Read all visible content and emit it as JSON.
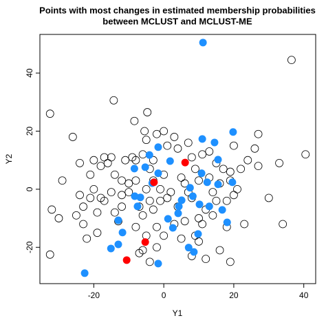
{
  "chart_data": {
    "type": "scatter",
    "title": [
      "Points with most changes in estimated membership probabilities",
      "between MCLUST and MCLUST-ME"
    ],
    "x_label": "Y1",
    "y_label": "Y2",
    "xlim": [
      -35.4,
      43.4
    ],
    "ylim": [
      -32.5,
      53.3
    ],
    "xticks": [
      -20,
      0,
      20,
      40
    ],
    "yticks": [
      -20,
      0,
      20,
      40
    ],
    "series": [
      {
        "color": "#000000",
        "filled": false,
        "x": [
          -32.5,
          -32,
          -32.5,
          -30,
          -29,
          -26,
          -24,
          -24,
          -23,
          -23,
          -21,
          -21,
          -20,
          -20,
          -19,
          -19,
          -18,
          -18,
          -17,
          -16,
          -15,
          -15,
          -14,
          -14,
          -13,
          -12,
          -12,
          -12,
          -11,
          -10,
          -10,
          -9,
          -8,
          -8,
          -8,
          -7,
          -7,
          -6,
          -6,
          -5,
          -6,
          -5,
          -5,
          -4,
          -4,
          -3,
          -3,
          -2,
          -2,
          -1,
          -1,
          0,
          0,
          0,
          1,
          1,
          2,
          3,
          3,
          4,
          4,
          5,
          5,
          6,
          6,
          7,
          7,
          8,
          8,
          8,
          9,
          9,
          10,
          10,
          10,
          11,
          11,
          12,
          12,
          13,
          13,
          14,
          14,
          15,
          15,
          16,
          16,
          17,
          18,
          18,
          19,
          19,
          19,
          20,
          20,
          21,
          22,
          23,
          24,
          26,
          27,
          27,
          30,
          33,
          34,
          36.5,
          40.5,
          -17,
          -25,
          -22,
          -3,
          -2,
          -4,
          -14.3,
          -4.7,
          -8.4,
          -5.5
        ],
        "values": [
          26,
          -7,
          -22.5,
          -10,
          3,
          18,
          9,
          -2,
          -6,
          -12,
          -3,
          5,
          0,
          10,
          -8,
          -15,
          -3,
          8,
          11,
          9,
          -1,
          11,
          5,
          -8,
          -11,
          -6,
          3,
          -2,
          10,
          -1,
          2,
          11,
          3,
          -13,
          10,
          -6,
          -22,
          -21,
          -9,
          0,
          12,
          17,
          -16,
          7,
          -4,
          3,
          -7,
          -13,
          19,
          0,
          -4,
          20,
          5,
          -16,
          15,
          -3,
          -1,
          18,
          -12,
          -6,
          14,
          -17,
          4,
          2,
          -11,
          -1,
          16,
          -23,
          -3,
          11,
          -16,
          7,
          3,
          -10,
          -18,
          -12,
          12,
          -24,
          -7,
          4,
          13,
          -1,
          -9,
          9,
          -4,
          -21,
          2,
          7,
          -13,
          -4,
          -25,
          6,
          3,
          -2,
          15,
          0,
          7,
          -12,
          10,
          14,
          8,
          19,
          -3,
          9,
          -12,
          44.5,
          12,
          -4,
          -9,
          -17,
          10,
          -20,
          -25,
          30.6,
          26.5,
          23.5,
          20
        ]
      },
      {
        "color": "#1e90ff",
        "filled": true,
        "x": [
          11.2,
          19.8,
          11.0,
          14.5,
          -1.6,
          -4.1,
          15.5,
          1.8,
          -5.3,
          -8.4,
          -1.6,
          10.8,
          -3.3,
          12.4,
          15.5,
          19.6,
          7.5,
          -8.3,
          -6.7,
          8.3,
          5.1,
          10.2,
          13.0,
          16.7,
          4.3,
          -7.5,
          4.1,
          -13.0,
          1.2,
          18.1,
          -11.8,
          2.6,
          9.8,
          -13.0,
          -15.1,
          7.1,
          8.6,
          -1.6,
          -22.6
        ],
        "values": [
          50.5,
          19.7,
          17.3,
          16.1,
          14.5,
          11.8,
          10.2,
          9.7,
          7.6,
          7.1,
          5.5,
          5.5,
          2.1,
          2.4,
          1.7,
          2.4,
          0.5,
          -2.4,
          -2.8,
          -2.4,
          -3.8,
          -5.2,
          -5.9,
          -7.1,
          -5.9,
          -5.9,
          -8.3,
          -10.7,
          -10.2,
          -11.4,
          -14.9,
          -13.3,
          -15.4,
          -19.0,
          -20.4,
          -20.1,
          -21.6,
          -25.6,
          -28.9
        ]
      },
      {
        "color": "#ff0000",
        "filled": true,
        "x": [
          6.1,
          -2.8,
          -5.3,
          -10.6
        ],
        "values": [
          9.2,
          2.4,
          -18.2,
          -24.4
        ]
      }
    ]
  }
}
